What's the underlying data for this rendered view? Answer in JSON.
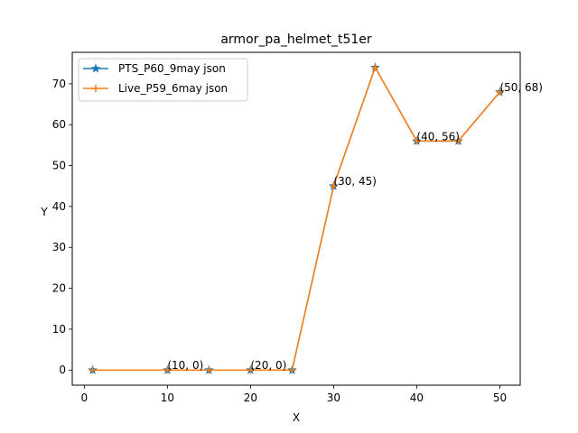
{
  "chart_data": {
    "type": "line",
    "title": "armor_pa_helmet_t51er",
    "xlabel": "X",
    "ylabel": "Y",
    "xlim": [
      -1.45,
      52.45
    ],
    "ylim": [
      -3.7,
      77.7
    ],
    "xticks": [
      0,
      10,
      20,
      30,
      40,
      50
    ],
    "yticks": [
      0,
      10,
      20,
      30,
      40,
      50,
      60,
      70
    ],
    "x": [
      1,
      10,
      15,
      20,
      25,
      30,
      35,
      40,
      45,
      50
    ],
    "series": [
      {
        "name": "PTS_P60_9may json",
        "values": [
          0,
          0,
          0,
          0,
          0,
          45,
          74,
          56,
          56,
          68
        ],
        "color": "#1f77b4",
        "marker": "star"
      },
      {
        "name": "Live_P59_6may json",
        "values": [
          0,
          0,
          0,
          0,
          0,
          45,
          74,
          56,
          56,
          68
        ],
        "color": "#ff7f0e",
        "marker": "plus"
      }
    ],
    "annotations": [
      {
        "x": 10,
        "y": 0,
        "text": "(10, 0)"
      },
      {
        "x": 20,
        "y": 0,
        "text": "(20, 0)"
      },
      {
        "x": 30,
        "y": 45,
        "text": "(30, 45)"
      },
      {
        "x": 40,
        "y": 56,
        "text": "(40, 56)"
      },
      {
        "x": 50,
        "y": 68,
        "text": "(50, 68)"
      }
    ],
    "legend": "top-left",
    "grid": false
  }
}
